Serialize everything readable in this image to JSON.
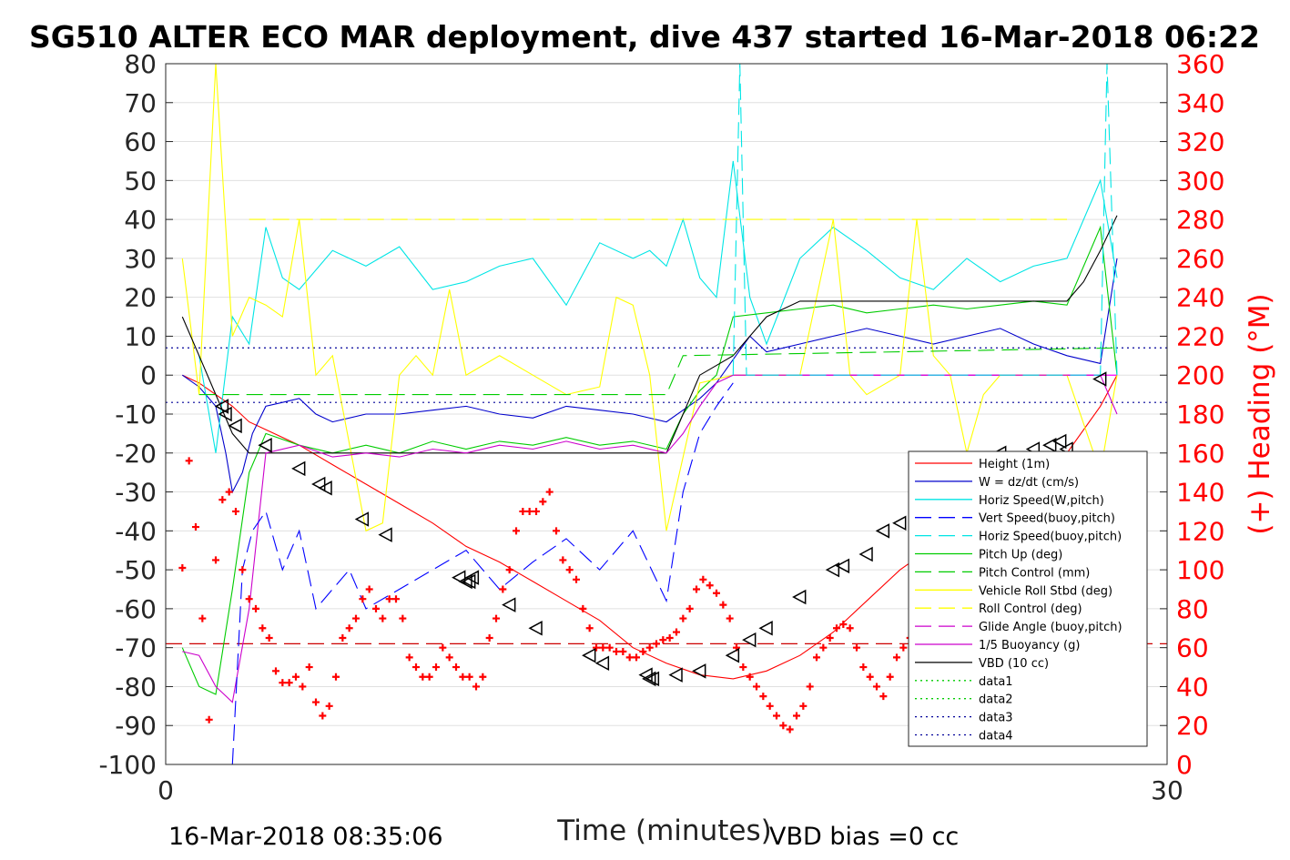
{
  "chart_data": {
    "type": "line",
    "title": "SG510 ALTER ECO MAR deployment, dive 437 started 16-Mar-2018 06:22",
    "xlabel": "Time (minutes)",
    "ylabel_right": "(+) Heading (°M)",
    "footer_left": "16-Mar-2018 08:35:06",
    "footer_right": "VBD bias =0 cc",
    "xlim": [
      0,
      30
    ],
    "ylim_left": [
      -100,
      80
    ],
    "ylim_right": [
      0,
      360
    ],
    "x_ticks": [
      "0",
      "30"
    ],
    "y_ticks_left": [
      "80",
      "70",
      "60",
      "50",
      "40",
      "30",
      "20",
      "10",
      "0",
      "-10",
      "-20",
      "-30",
      "-40",
      "-50",
      "-60",
      "-70",
      "-80",
      "-90",
      "-100"
    ],
    "y_ticks_right": [
      "360",
      "340",
      "320",
      "300",
      "280",
      "260",
      "240",
      "220",
      "200",
      "180",
      "160",
      "140",
      "120",
      "100",
      "80",
      "60",
      "40",
      "20",
      "0"
    ],
    "grid": true,
    "legend_position": "lower-right",
    "colors": {
      "height": "#ff0000",
      "w": "#0000cc",
      "hspeed": "#00e5e5",
      "vspeed_buoy": "#0000ff",
      "hspeed_buoy": "#00e5e5",
      "pitch": "#00cc00",
      "pitch_control": "#00cc00",
      "roll": "#ffff00",
      "roll_control": "#ffff00",
      "glide": "#cc00cc",
      "buoyancy": "#cc00cc",
      "vbd": "#000000",
      "heading": "#ff0000",
      "axis_right": "#ff0000"
    },
    "series": [
      {
        "name": "Height (1m)",
        "color": "#ff0000",
        "dash": "",
        "x": [
          0.5,
          1.0,
          1.5,
          2.0,
          2.5,
          3.0,
          4.0,
          5.0,
          6.0,
          7.0,
          8.0,
          9.0,
          10.0,
          11.0,
          12.0,
          13.0,
          14.0,
          15.0,
          16.0,
          17.0,
          18.0,
          19.0,
          20.0,
          21.0,
          22.0,
          23.0,
          24.0,
          25.0,
          26.0,
          27.0,
          28.0,
          28.5
        ],
        "y": [
          0,
          -2,
          -5,
          -8,
          -12,
          -14,
          -18,
          -23,
          -28,
          -33,
          -38,
          -44,
          -48,
          -53,
          -58,
          -63,
          -70,
          -74,
          -77,
          -78,
          -76,
          -72,
          -66,
          -58,
          -50,
          -44,
          -38,
          -32,
          -26,
          -20,
          -8,
          0
        ]
      },
      {
        "name": "W = dz/dt (cm/s)",
        "color": "#0000cc",
        "dash": "",
        "x": [
          0.5,
          1.0,
          1.5,
          1.8,
          2.0,
          2.3,
          2.6,
          3.0,
          3.5,
          4.0,
          4.5,
          5.0,
          6.0,
          7.0,
          8.0,
          9.0,
          10.0,
          11.0,
          12.0,
          13.0,
          14.0,
          15.0,
          15.5,
          16.0,
          16.5,
          17.0,
          17.5,
          18.0,
          19.0,
          20.0,
          21.0,
          22.0,
          23.0,
          24.0,
          25.0,
          26.0,
          27.0,
          28.0,
          28.5
        ],
        "y": [
          0,
          -3,
          -8,
          -20,
          -30,
          -25,
          -15,
          -8,
          -7,
          -6,
          -10,
          -12,
          -10,
          -10,
          -9,
          -8,
          -10,
          -11,
          -8,
          -9,
          -10,
          -12,
          -9,
          -6,
          -2,
          4,
          10,
          6,
          8,
          10,
          12,
          10,
          8,
          10,
          12,
          8,
          5,
          3,
          30
        ]
      },
      {
        "name": "Horiz Speed(W,pitch)",
        "color": "#00e5e5",
        "dash": "",
        "x": [
          1.0,
          1.5,
          2.0,
          2.5,
          3.0,
          3.5,
          4.0,
          5.0,
          6.0,
          7.0,
          8.0,
          9.0,
          10.0,
          11.0,
          12.0,
          13.0,
          14.0,
          14.5,
          15.0,
          15.5,
          16.0,
          16.5,
          17.0,
          17.5,
          18.0,
          19.0,
          20.0,
          21.0,
          22.0,
          23.0,
          24.0,
          25.0,
          26.0,
          27.0,
          28.0,
          28.5
        ],
        "y": [
          5,
          -20,
          15,
          8,
          38,
          25,
          22,
          32,
          28,
          33,
          22,
          24,
          28,
          30,
          18,
          34,
          30,
          32,
          28,
          40,
          25,
          20,
          55,
          20,
          8,
          30,
          38,
          32,
          25,
          22,
          30,
          24,
          28,
          30,
          50,
          25
        ]
      },
      {
        "name": "Pitch Up (deg)",
        "color": "#00cc00",
        "dash": "",
        "x": [
          0.5,
          1.0,
          1.5,
          2.0,
          2.5,
          3.0,
          4.0,
          5.0,
          6.0,
          7.0,
          8.0,
          9.0,
          10.0,
          11.0,
          12.0,
          13.0,
          14.0,
          15.0,
          15.5,
          16.0,
          16.5,
          17.0,
          18.0,
          19.0,
          20.0,
          21.0,
          22.0,
          23.0,
          24.0,
          25.0,
          26.0,
          27.0,
          28.0,
          28.5
        ],
        "y": [
          -70,
          -80,
          -82,
          -55,
          -25,
          -15,
          -18,
          -20,
          -18,
          -20,
          -17,
          -19,
          -17,
          -18,
          -16,
          -18,
          -17,
          -19,
          -10,
          -4,
          0,
          15,
          16,
          17,
          18,
          16,
          17,
          18,
          17,
          18,
          19,
          18,
          38,
          0
        ]
      },
      {
        "name": "Vehicle Roll Stbd (deg)",
        "color": "#ffff00",
        "dash": "",
        "x": [
          0.5,
          1.0,
          1.5,
          2.0,
          2.5,
          3.0,
          3.5,
          4.0,
          4.5,
          5.0,
          6.0,
          6.5,
          7.0,
          7.5,
          8.0,
          8.5,
          9.0,
          10.0,
          11.0,
          12.0,
          13.0,
          13.5,
          14.0,
          14.5,
          15.0,
          16.0,
          17.0,
          18.0,
          19.0,
          20.0,
          20.5,
          21.0,
          22.0,
          22.5,
          23.0,
          23.5,
          24.0,
          24.5,
          25.0,
          26.0,
          27.0,
          28.0,
          28.5
        ],
        "y": [
          30,
          -5,
          80,
          10,
          20,
          18,
          15,
          40,
          0,
          5,
          -40,
          -38,
          0,
          5,
          0,
          22,
          0,
          5,
          0,
          -5,
          -3,
          20,
          18,
          0,
          -40,
          -2,
          0,
          0,
          0,
          40,
          0,
          -5,
          0,
          40,
          5,
          0,
          -20,
          -5,
          0,
          0,
          0,
          -25,
          0
        ]
      },
      {
        "name": "VBD (10 cc)",
        "color": "#000000",
        "dash": "",
        "x": [
          0.5,
          1.0,
          1.5,
          2.0,
          2.5,
          3.0,
          15.0,
          16.0,
          17.0,
          18.0,
          19.0,
          20.0,
          21.0,
          22.0,
          23.0,
          24.0,
          25.0,
          26.0,
          27.0,
          27.5,
          28.0,
          28.5
        ],
        "y": [
          15,
          5,
          -5,
          -15,
          -20,
          -20,
          -20,
          0,
          5,
          15,
          19,
          19,
          19,
          19,
          19,
          19,
          19,
          19,
          19,
          24,
          32,
          41
        ]
      },
      {
        "name": "Pitch Control (mm)",
        "color": "#00cc00",
        "dash": "18,8",
        "x": [
          1.0,
          15.0,
          15.5,
          28.5
        ],
        "y": [
          -5,
          -5,
          5,
          7
        ]
      },
      {
        "name": "1/5 Buoyancy (g)",
        "color": "#cc00cc",
        "dash": "",
        "x": [
          0.5,
          1.0,
          1.5,
          2.0,
          2.5,
          3.0,
          4.0,
          5.0,
          6.0,
          7.0,
          8.0,
          9.0,
          10.0,
          11.0,
          12.0,
          13.0,
          14.0,
          15.0,
          15.5,
          16.0,
          16.5,
          17.0,
          28.0,
          28.5
        ],
        "y": [
          -71,
          -72,
          -80,
          -84,
          -60,
          -20,
          -18,
          -21,
          -20,
          -21,
          -19,
          -20,
          -18,
          -19,
          -17,
          -19,
          -18,
          -20,
          -15,
          -8,
          -2,
          0,
          0,
          -10
        ]
      },
      {
        "name": "Horiz Speed(buoy,pitch)",
        "color": "#00e5e5",
        "dash": "18,8",
        "x": [
          17.0,
          17.2,
          17.4,
          28.0,
          28.2,
          28.5
        ],
        "y": [
          0,
          80,
          0,
          0,
          80,
          0
        ]
      },
      {
        "name": "Vert Speed(buoy,pitch)",
        "color": "#0000ff",
        "dash": "18,8",
        "x": [
          2.0,
          2.3,
          2.6,
          3.0,
          3.5,
          4.0,
          4.5,
          5.0,
          5.5,
          6.0,
          7.0,
          8.0,
          9.0,
          10.0,
          11.0,
          12.0,
          13.0,
          14.0,
          15.0,
          15.5,
          16.0,
          16.5,
          17.0
        ],
        "y": [
          -100,
          -50,
          -40,
          -35,
          -50,
          -40,
          -60,
          -55,
          -50,
          -60,
          -55,
          -50,
          -45,
          -55,
          -48,
          -42,
          -50,
          -40,
          -58,
          -30,
          -15,
          -8,
          -2
        ]
      },
      {
        "name": "Roll Control (deg)",
        "color": "#ffff00",
        "dash": "18,8",
        "x": [
          2.5,
          3.0,
          3.5,
          4.0,
          7.0,
          7.5,
          8.0,
          13.0,
          13.5,
          14.0,
          18.0,
          18.5,
          19.0,
          20.0,
          20.5,
          21.0,
          26.0,
          26.5,
          27.0
        ],
        "y": [
          40,
          40,
          40,
          40,
          40,
          40,
          40,
          40,
          40,
          40,
          40,
          40,
          40,
          40,
          40,
          40,
          40,
          40,
          40
        ]
      }
    ],
    "legend": [
      {
        "name": "Height (1m)",
        "color": "#ff0000",
        "dash": ""
      },
      {
        "name": "W = dz/dt (cm/s)",
        "color": "#0000cc",
        "dash": ""
      },
      {
        "name": "Horiz Speed(W,pitch)",
        "color": "#00e5e5",
        "dash": ""
      },
      {
        "name": "Vert Speed(buoy,pitch)",
        "color": "#0000ff",
        "dash": "18,8"
      },
      {
        "name": "Horiz Speed(buoy,pitch)",
        "color": "#00e5e5",
        "dash": "18,8"
      },
      {
        "name": "Pitch Up (deg)",
        "color": "#00cc00",
        "dash": ""
      },
      {
        "name": "Pitch Control (mm)",
        "color": "#00cc00",
        "dash": "18,8"
      },
      {
        "name": "Vehicle Roll Stbd (deg)",
        "color": "#ffff00",
        "dash": ""
      },
      {
        "name": "Roll Control (deg)",
        "color": "#ffff00",
        "dash": "18,8"
      },
      {
        "name": "Glide Angle (buoy,pitch)",
        "color": "#cc00cc",
        "dash": "18,8"
      },
      {
        "name": "1/5 Buoyancy (g)",
        "color": "#cc00cc",
        "dash": ""
      },
      {
        "name": "VBD (10 cc)",
        "color": "#000000",
        "dash": ""
      },
      {
        "name": "data1",
        "color": "#00cc00",
        "dash": "2,4"
      },
      {
        "name": "data2",
        "color": "#00cc00",
        "dash": "2,4"
      },
      {
        "name": "data3",
        "color": "#000099",
        "dash": "2,4"
      },
      {
        "name": "data4",
        "color": "#000099",
        "dash": "2,4"
      }
    ],
    "reference_lines": [
      {
        "y": 7,
        "color": "#000099",
        "dash": "2,4"
      },
      {
        "y": -7,
        "color": "#000099",
        "dash": "2,4"
      },
      {
        "y": -69,
        "color": "#cc0000",
        "dash": "18,8"
      },
      {
        "y": 0,
        "color": "#ff00ff",
        "dash": "",
        "x_from": 17.0,
        "x_to": 28.5
      }
    ],
    "heading_points": {
      "x": [
        0.5,
        0.7,
        0.9,
        1.1,
        1.3,
        1.5,
        1.7,
        1.9,
        2.1,
        2.3,
        2.5,
        2.7,
        2.9,
        3.1,
        3.3,
        3.5,
        3.7,
        3.9,
        4.1,
        4.3,
        4.5,
        4.7,
        4.9,
        5.1,
        5.3,
        5.5,
        5.7,
        5.9,
        6.1,
        6.3,
        6.5,
        6.7,
        6.9,
        7.1,
        7.3,
        7.5,
        7.7,
        7.9,
        8.1,
        8.3,
        8.5,
        8.7,
        8.9,
        9.1,
        9.3,
        9.5,
        9.7,
        9.9,
        10.1,
        10.3,
        10.5,
        10.7,
        10.9,
        11.1,
        11.3,
        11.5,
        11.7,
        11.9,
        12.1,
        12.3,
        12.5,
        12.7,
        12.9,
        13.1,
        13.3,
        13.5,
        13.7,
        13.9,
        14.1,
        14.3,
        14.5,
        14.7,
        14.9,
        15.1,
        15.3,
        15.5,
        15.7,
        15.9,
        16.1,
        16.3,
        16.5,
        16.7,
        16.9,
        17.1,
        17.3,
        17.5,
        17.7,
        17.9,
        18.1,
        18.3,
        18.5,
        18.7,
        18.9,
        19.1,
        19.3,
        19.5,
        19.7,
        19.9,
        20.1,
        20.3,
        20.5,
        20.7,
        20.9,
        21.1,
        21.3,
        21.5,
        21.7,
        21.9,
        22.1,
        22.3,
        22.5,
        22.7,
        22.9,
        23.1,
        23.3,
        23.5,
        23.7,
        23.9,
        24.1,
        24.3,
        24.5,
        24.7,
        24.9,
        25.1,
        25.3,
        25.5,
        25.7,
        25.9,
        26.1,
        26.3,
        26.5,
        26.7,
        26.9,
        27.1,
        27.3,
        27.5,
        27.7,
        27.9
      ],
      "y": [
        101,
        156,
        122,
        75,
        23,
        105,
        136,
        140,
        130,
        100,
        85,
        80,
        70,
        65,
        48,
        42,
        42,
        45,
        40,
        50,
        32,
        25,
        30,
        45,
        65,
        70,
        75,
        85,
        90,
        80,
        75,
        85,
        85,
        75,
        55,
        50,
        45,
        45,
        50,
        60,
        55,
        50,
        45,
        45,
        40,
        45,
        65,
        75,
        90,
        100,
        120,
        130,
        130,
        130,
        135,
        140,
        120,
        105,
        100,
        95,
        80,
        70,
        60,
        60,
        60,
        58,
        58,
        55,
        55,
        58,
        60,
        62,
        64,
        65,
        68,
        75,
        80,
        90,
        95,
        92,
        88,
        82,
        75,
        60,
        50,
        45,
        40,
        35,
        30,
        25,
        20,
        18,
        25,
        30,
        40,
        55,
        60,
        65,
        70,
        72,
        70,
        60,
        50,
        45,
        40,
        35,
        45,
        55,
        60,
        65,
        70,
        75,
        80,
        85,
        90,
        95,
        90,
        85,
        80,
        70,
        60,
        55,
        50,
        45,
        40,
        35,
        30,
        25,
        20,
        15,
        20,
        25,
        30,
        40,
        50,
        55,
        60,
        65
      ]
    },
    "markers": {
      "x": [
        1.7,
        1.8,
        2.1,
        3.0,
        4.0,
        4.6,
        4.8,
        5.9,
        6.6,
        8.8,
        9.0,
        9.1,
        9.2,
        10.3,
        11.1,
        12.7,
        13.1,
        14.4,
        14.5,
        14.6,
        15.3,
        16.0,
        17.0,
        17.5,
        18.0,
        19.0,
        20.0,
        20.3,
        21.0,
        21.5,
        22.0,
        23.0,
        23.2,
        23.4,
        24.0,
        25.0,
        26.0,
        26.5,
        26.8,
        27.0,
        28.0
      ],
      "y": [
        -8,
        -10,
        -13,
        -18,
        -24,
        -28,
        -29,
        -37,
        -41,
        -52,
        -53,
        -53,
        -52,
        -59,
        -65,
        -72,
        -74,
        -77,
        -78,
        -78,
        -77,
        -76,
        -72,
        -68,
        -65,
        -57,
        -50,
        -49,
        -46,
        -40,
        -38,
        -36,
        -37,
        -38,
        -26,
        -20,
        -19,
        -18,
        -17,
        -19,
        -1
      ]
    }
  }
}
